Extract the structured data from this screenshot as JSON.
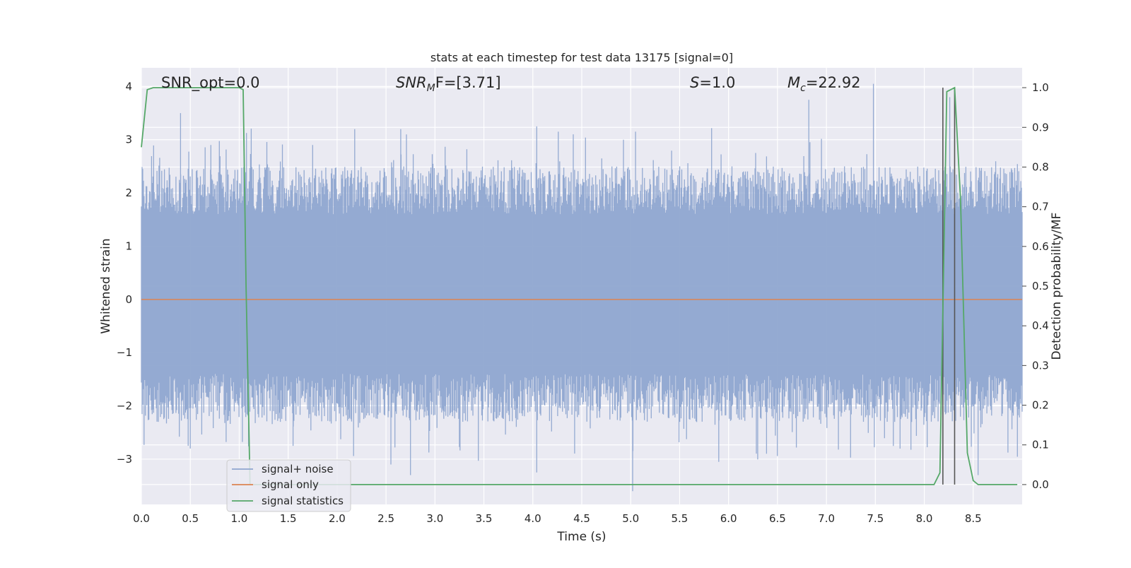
{
  "chart_data": {
    "type": "line",
    "title": "stats at each timestep for test data 13175 [signal=0]",
    "xlabel": "Time (s)",
    "ylabel_left": "Whitened strain",
    "ylabel_right": "Detection probability/MF",
    "xlim": [
      0.0,
      9.0
    ],
    "ylim_left": [
      -3.85,
      4.35
    ],
    "ylim_right": [
      -0.05,
      1.05
    ],
    "x_ticks": [
      "0.0",
      "0.5",
      "1.0",
      "1.5",
      "2.0",
      "2.5",
      "3.0",
      "3.5",
      "4.0",
      "4.5",
      "5.0",
      "5.5",
      "6.0",
      "6.5",
      "7.0",
      "7.5",
      "8.0",
      "8.5"
    ],
    "y_ticks_left": [
      "−3",
      "−2",
      "−1",
      "0",
      "1",
      "2",
      "3",
      "4"
    ],
    "y_ticks_right": [
      "0.0",
      "0.1",
      "0.2",
      "0.3",
      "0.4",
      "0.5",
      "0.6",
      "0.7",
      "0.8",
      "0.9",
      "1.0"
    ],
    "grid": true,
    "legend_placement": "lower-left",
    "annotations": {
      "snr_opt": "SNR_opt=0.0",
      "snr_mf_main": "SNR",
      "snr_mf_sub": "M",
      "snr_mf_rest": "F=[3.71]",
      "s_main": "S",
      "s_rest": "=1.0",
      "mc_main": "M",
      "mc_sub": "c",
      "mc_rest": "=22.92"
    },
    "series": [
      {
        "name": "signal+ noise",
        "color": "#8fa6d0",
        "envelope_peaks": [
          {
            "x": 0.4,
            "y": 3.5
          },
          {
            "x": 0.71,
            "y": 2.9
          },
          {
            "x": 1.05,
            "y": 3.0
          },
          {
            "x": 1.75,
            "y": 2.9
          },
          {
            "x": 2.18,
            "y": 3.2
          },
          {
            "x": 2.65,
            "y": 3.2
          },
          {
            "x": 4.04,
            "y": 3.25
          },
          {
            "x": 4.26,
            "y": 3.15
          },
          {
            "x": 5.05,
            "y": 3.15
          },
          {
            "x": 6.82,
            "y": 3.75
          },
          {
            "x": 7.48,
            "y": 4.05
          },
          {
            "x": 8.26,
            "y": 3.8
          }
        ],
        "envelope_troughs": [
          {
            "x": 0.5,
            "y": -2.8
          },
          {
            "x": 1.55,
            "y": -2.75
          },
          {
            "x": 2.55,
            "y": -3.1
          },
          {
            "x": 2.75,
            "y": -3.3
          },
          {
            "x": 4.04,
            "y": -3.25
          },
          {
            "x": 5.02,
            "y": -3.6
          },
          {
            "x": 5.9,
            "y": -3.05
          },
          {
            "x": 8.55,
            "y": -3.3
          }
        ],
        "typical_band": [
          -1.7,
          1.9
        ]
      },
      {
        "name": "signal only",
        "color": "#dd8452",
        "x": [
          0.0,
          9.0
        ],
        "y": [
          0.0,
          0.0
        ]
      },
      {
        "name": "signal statistics",
        "color": "#55a868",
        "x": [
          0.0,
          0.06,
          0.12,
          1.0,
          1.04,
          1.07,
          1.11,
          1.15,
          8.1,
          8.16,
          8.23,
          8.27,
          8.31,
          8.37,
          8.44,
          8.5,
          8.55,
          8.95
        ],
        "y": [
          0.85,
          0.995,
          1.0,
          1.0,
          0.995,
          0.5,
          0.0,
          0.0,
          0.0,
          0.03,
          0.99,
          0.995,
          1.0,
          0.72,
          0.08,
          0.01,
          0.0,
          0.0
        ]
      }
    ],
    "vertical_markers": {
      "color": "#555555",
      "x": [
        8.19,
        8.31
      ],
      "y_range": [
        0.0,
        1.0
      ]
    }
  }
}
